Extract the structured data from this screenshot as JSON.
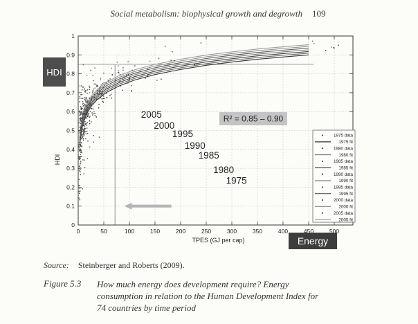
{
  "header": {
    "title": "Social metabolism: biophysical growth and degrowth",
    "page_number": "109"
  },
  "source": {
    "label": "Source:",
    "text": "Steinberger and Roberts (2009)."
  },
  "figure": {
    "label": "Figure 5.3",
    "lines": [
      "How much energy does development require? Energy",
      "consumption in relation to the Human Development Index for",
      "74 countries by time period"
    ]
  },
  "chart_data": {
    "type": "scatter",
    "title": "",
    "xlabel": "TPES (GJ per cap)",
    "ylabel": "HDI",
    "xlim": [
      0,
      536
    ],
    "ylim": [
      0,
      1
    ],
    "x_ticks": [
      0,
      50,
      100,
      150,
      200,
      250,
      300,
      350,
      400,
      450,
      500
    ],
    "x_tick_labels": [
      "0",
      "50",
      "100",
      "150",
      "200",
      "250",
      "300",
      "350",
      "400",
      "450",
      "500"
    ],
    "y_ticks": [
      0,
      0.1,
      0.2,
      0.3,
      0.4,
      0.5,
      0.6,
      0.7,
      0.8,
      0.9,
      1
    ],
    "y_tick_labels": [
      "0",
      "0.1",
      "0.2",
      "0.3",
      "0.4",
      "0.5",
      "0.6",
      "0.7",
      "0.8",
      "0.9",
      "1"
    ],
    "grid": true,
    "legend_position": "right-inside",
    "r2_annotation": "R² = 0.85 – 0.90",
    "hdi_badge": "HDI",
    "energy_badge": "Energy",
    "year_labels": [
      {
        "text": "2005",
        "x": 143,
        "y": 0.584
      },
      {
        "text": "2000",
        "x": 168,
        "y": 0.526
      },
      {
        "text": "1995",
        "x": 204,
        "y": 0.482
      },
      {
        "text": "1990",
        "x": 228,
        "y": 0.42
      },
      {
        "text": "1985",
        "x": 255,
        "y": 0.369
      },
      {
        "text": "1980",
        "x": 284,
        "y": 0.292
      },
      {
        "text": "1975",
        "x": 309,
        "y": 0.234
      }
    ],
    "reference": {
      "h_line_y": 0.85,
      "h_line_x_end": 460,
      "v_line_x": 72
    },
    "arrow": {
      "y": 0.1,
      "x_tail": 182,
      "x_tip": 90
    },
    "fit_x": [
      3,
      5,
      8,
      12,
      18,
      26,
      38,
      55,
      80,
      110,
      150,
      200,
      250,
      300,
      350,
      400,
      450
    ],
    "series": [
      {
        "name": "1975 fit",
        "a": 0.32,
        "b": 0.095,
        "color": "#303030",
        "y": [
          0.424,
          0.473,
          0.518,
          0.556,
          0.595,
          0.63,
          0.666,
          0.701,
          0.736,
          0.767,
          0.796,
          0.823,
          0.845,
          0.862,
          0.877,
          0.889,
          0.9
        ]
      },
      {
        "name": "1980 fit",
        "a": 0.329,
        "b": 0.095,
        "color": "#6e6e6e",
        "y": [
          0.433,
          0.482,
          0.527,
          0.565,
          0.604,
          0.639,
          0.675,
          0.71,
          0.745,
          0.776,
          0.805,
          0.832,
          0.854,
          0.871,
          0.886,
          0.898,
          0.909
        ]
      },
      {
        "name": "1985 fit",
        "a": 0.338,
        "b": 0.095,
        "color": "#454545",
        "y": [
          0.442,
          0.491,
          0.536,
          0.574,
          0.613,
          0.648,
          0.684,
          0.719,
          0.754,
          0.785,
          0.814,
          0.841,
          0.863,
          0.88,
          0.895,
          0.907,
          0.918
        ]
      },
      {
        "name": "1990 fit",
        "a": 0.347,
        "b": 0.095,
        "color": "#808080",
        "y": [
          0.451,
          0.5,
          0.545,
          0.583,
          0.622,
          0.657,
          0.693,
          0.728,
          0.763,
          0.794,
          0.823,
          0.85,
          0.872,
          0.889,
          0.904,
          0.916,
          0.927
        ]
      },
      {
        "name": "1995 fit",
        "a": 0.356,
        "b": 0.095,
        "color": "#575757",
        "y": [
          0.46,
          0.509,
          0.554,
          0.592,
          0.631,
          0.666,
          0.702,
          0.737,
          0.772,
          0.803,
          0.832,
          0.859,
          0.881,
          0.898,
          0.913,
          0.925,
          0.936
        ]
      },
      {
        "name": "2000 fit",
        "a": 0.365,
        "b": 0.095,
        "color": "#8f8f8f",
        "y": [
          0.469,
          0.518,
          0.563,
          0.601,
          0.64,
          0.675,
          0.711,
          0.746,
          0.781,
          0.812,
          0.841,
          0.868,
          0.89,
          0.907,
          0.922,
          0.934,
          0.945
        ]
      },
      {
        "name": "2005 fit",
        "a": 0.374,
        "b": 0.095,
        "color": "#9d9d9d",
        "y": [
          0.478,
          0.527,
          0.572,
          0.61,
          0.649,
          0.684,
          0.72,
          0.755,
          0.79,
          0.821,
          0.85,
          0.877,
          0.899,
          0.916,
          0.931,
          0.943,
          0.954
        ]
      }
    ],
    "legend": {
      "items": [
        {
          "marker": "dot",
          "label": "1975 data",
          "color": "#4a4a4a"
        },
        {
          "marker": "line",
          "label": "1975 fit",
          "color": "#303030"
        },
        {
          "marker": "dot",
          "label": "1980 data",
          "color": "#4a4a4a"
        },
        {
          "marker": "line",
          "label": "1980 fit",
          "color": "#6e6e6e"
        },
        {
          "marker": "dot",
          "label": "1985 data",
          "color": "#4a4a4a"
        },
        {
          "marker": "line",
          "label": "1985 fit",
          "color": "#454545"
        },
        {
          "marker": "dot",
          "label": "1990 data",
          "color": "#4a4a4a"
        },
        {
          "marker": "line",
          "label": "1990 fit",
          "color": "#808080"
        },
        {
          "marker": "dot",
          "label": "1995 data",
          "color": "#4a4a4a"
        },
        {
          "marker": "line",
          "label": "1995 fit",
          "color": "#575757"
        },
        {
          "marker": "dot",
          "label": "2000 data",
          "color": "#4a4a4a"
        },
        {
          "marker": "line",
          "label": "2000 fit",
          "color": "#8f8f8f"
        },
        {
          "marker": "dot",
          "label": "2005 data",
          "color": "#4a4a4a"
        },
        {
          "marker": "line",
          "label": "2005 fit",
          "color": "#9d9d9d"
        }
      ]
    },
    "scatter_gen": {
      "seed": 11,
      "per_series": 62,
      "far_points_per_series": 1,
      "log_mu": 2.75,
      "log_sigma": 1.15,
      "noise_base": 0.032,
      "noise_amp": 0.085,
      "noise_decay": 18,
      "outlier_prob": 0.09,
      "outlier_max": 0.28,
      "point_colors": [
        "#2e2e2e",
        "#383838",
        "#404040",
        "#474747",
        "#4f4f4f",
        "#585858",
        "#616161"
      ]
    },
    "colors": {
      "axis": "#4a4a4a",
      "grid": "#cbcbcb",
      "tick_text": "#222222",
      "annotation_bg": "#c4c4c4",
      "ref_line": "#a9a9a9",
      "arrow": "#b5b5b5",
      "hdi_badge_bg": "#4d4d4d",
      "energy_badge_bg": "#3d3d3d",
      "legend_border": "#777777",
      "legend_bg": "#fdfdfc"
    }
  }
}
